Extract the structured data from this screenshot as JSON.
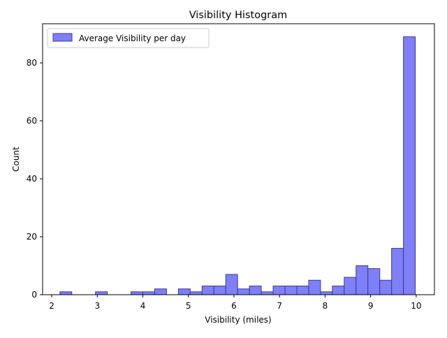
{
  "chart_data": {
    "type": "bar",
    "title": "Visibility Histogram",
    "xlabel": "Visibility (miles)",
    "ylabel": "Count",
    "xlim": [
      1.8,
      10.4
    ],
    "ylim": [
      0,
      93.5
    ],
    "xticks": [
      2,
      3,
      4,
      5,
      6,
      7,
      8,
      9,
      10
    ],
    "yticks": [
      0,
      20,
      40,
      60,
      80
    ],
    "grid": false,
    "legend_position": "top-left",
    "bar_color": "#7f7ff8",
    "bar_edge_color": "#3a3a8c",
    "bin_width": 0.26,
    "series": [
      {
        "name": "Average Visibility per day",
        "bins": [
          {
            "x": 2.18,
            "count": 1
          },
          {
            "x": 2.44,
            "count": 0
          },
          {
            "x": 2.7,
            "count": 0
          },
          {
            "x": 2.96,
            "count": 1
          },
          {
            "x": 3.22,
            "count": 0
          },
          {
            "x": 3.48,
            "count": 0
          },
          {
            "x": 3.74,
            "count": 1
          },
          {
            "x": 4.0,
            "count": 1
          },
          {
            "x": 4.26,
            "count": 2
          },
          {
            "x": 4.52,
            "count": 0
          },
          {
            "x": 4.78,
            "count": 2
          },
          {
            "x": 5.04,
            "count": 1
          },
          {
            "x": 5.3,
            "count": 3
          },
          {
            "x": 5.56,
            "count": 3
          },
          {
            "x": 5.82,
            "count": 7
          },
          {
            "x": 6.08,
            "count": 2
          },
          {
            "x": 6.34,
            "count": 3
          },
          {
            "x": 6.6,
            "count": 1
          },
          {
            "x": 6.86,
            "count": 3
          },
          {
            "x": 7.12,
            "count": 3
          },
          {
            "x": 7.38,
            "count": 3
          },
          {
            "x": 7.64,
            "count": 5
          },
          {
            "x": 7.9,
            "count": 1
          },
          {
            "x": 8.16,
            "count": 3
          },
          {
            "x": 8.42,
            "count": 6
          },
          {
            "x": 8.68,
            "count": 10
          },
          {
            "x": 8.94,
            "count": 9
          },
          {
            "x": 9.2,
            "count": 5
          },
          {
            "x": 9.46,
            "count": 16
          },
          {
            "x": 9.72,
            "count": 89
          }
        ]
      }
    ]
  }
}
